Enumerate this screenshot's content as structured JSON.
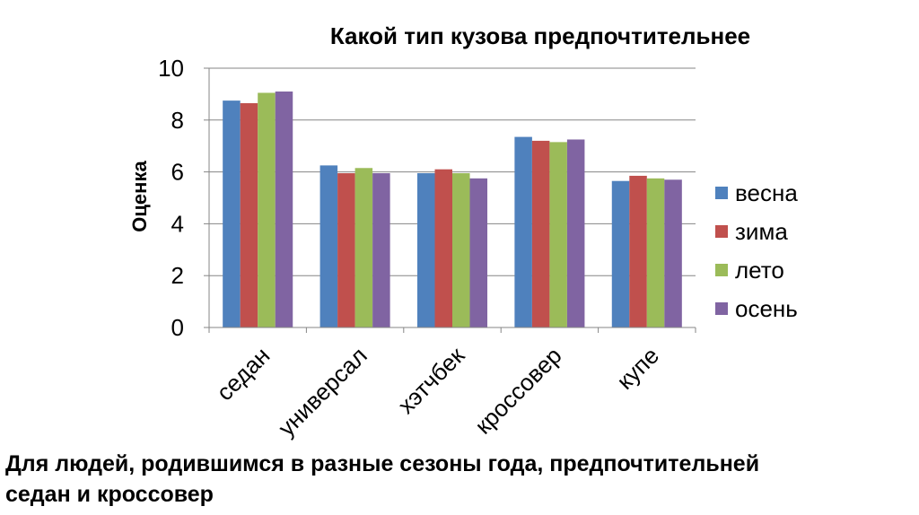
{
  "chart_data": {
    "type": "bar",
    "title": "Какой тип кузова предпочтительнее",
    "xlabel": "",
    "ylabel": "Оценка",
    "ylim": [
      0,
      10
    ],
    "yticks": [
      "0",
      "2",
      "4",
      "6",
      "8",
      "10"
    ],
    "categories": [
      "седан",
      "универсал",
      "хэтчбек",
      "кроссовер",
      "купе"
    ],
    "series": [
      {
        "name": "весна",
        "color": "#4F81BD",
        "values": [
          8.75,
          6.25,
          5.95,
          7.35,
          5.65
        ]
      },
      {
        "name": "зима",
        "color": "#C0504D",
        "values": [
          8.65,
          5.95,
          6.1,
          7.2,
          5.85
        ]
      },
      {
        "name": "лето",
        "color": "#9BBB59",
        "values": [
          9.05,
          6.15,
          5.95,
          7.15,
          5.75
        ]
      },
      {
        "name": "осень",
        "color": "#8064A2",
        "values": [
          9.1,
          5.95,
          5.75,
          7.25,
          5.7
        ]
      }
    ],
    "grid": true,
    "legend": "right"
  },
  "caption": {
    "line1": "Для людей, родившимся в разные сезоны года, предпочтительней",
    "line2": "седан и кроссовер"
  }
}
